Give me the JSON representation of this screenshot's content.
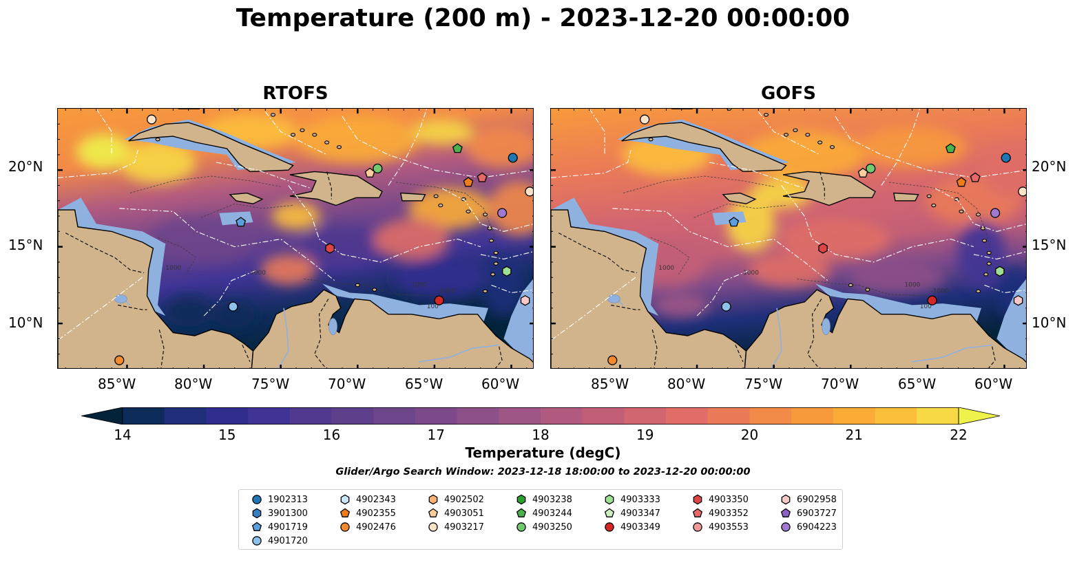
{
  "title": "Temperature (200 m) - 2023-12-20 00:00:00",
  "panels": [
    {
      "id": "rtofs",
      "title": "RTOFS"
    },
    {
      "id": "gofs",
      "title": "GOFS"
    }
  ],
  "axes": {
    "lon_ticks": [
      "85°W",
      "80°W",
      "75°W",
      "70°W",
      "65°W",
      "60°W"
    ],
    "lat_ticks": [
      "20°N",
      "15°N",
      "10°N"
    ],
    "lon_range": [
      -89.5,
      -58.5
    ],
    "lat_range": [
      7,
      24
    ]
  },
  "colorbar": {
    "label": "Temperature (degC)",
    "ticks": [
      "14",
      "15",
      "16",
      "17",
      "18",
      "19",
      "20",
      "21",
      "22"
    ],
    "range": [
      14,
      22
    ],
    "colors": [
      "#03233a",
      "#0e2c5a",
      "#1f2f7a",
      "#302d8f",
      "#3f3495",
      "#50398f",
      "#5e3f8c",
      "#6d458b",
      "#7c4a8a",
      "#8d5088",
      "#9e5686",
      "#b05a80",
      "#c25f77",
      "#d26670",
      "#e06e66",
      "#ea7a58",
      "#f28a48",
      "#f79a3c",
      "#fbac37",
      "#fcbf3c",
      "#f7d845",
      "#eef24b"
    ]
  },
  "contour_labels": [
    "1000",
    "1000",
    "1000",
    "100",
    "-1000"
  ],
  "search_window": "Glider/Argo Search Window: 2023-12-18 18:00:00 to 2023-12-20 00:00:00",
  "legend": [
    {
      "id": "1902313",
      "marker": "circle",
      "color": "#1f77b4"
    },
    {
      "id": "3901300",
      "marker": "hexagon",
      "color": "#3a7ec2"
    },
    {
      "id": "4901719",
      "marker": "pentagon",
      "color": "#5aa0dc"
    },
    {
      "id": "4901720",
      "marker": "circle",
      "color": "#8ec2ec"
    },
    {
      "id": "4902343",
      "marker": "hexagon",
      "color": "#cbe5fb"
    },
    {
      "id": "4902355",
      "marker": "pentagon",
      "color": "#f07c1a"
    },
    {
      "id": "4902476",
      "marker": "circle",
      "color": "#f28a2e"
    },
    {
      "id": "4902502",
      "marker": "hexagon",
      "color": "#f9b273"
    },
    {
      "id": "4903051",
      "marker": "pentagon",
      "color": "#fbcd9a"
    },
    {
      "id": "4903217",
      "marker": "circle",
      "color": "#fde3c8"
    },
    {
      "id": "4903238",
      "marker": "hexagon",
      "color": "#2ca02c"
    },
    {
      "id": "4903244",
      "marker": "pentagon",
      "color": "#4cb24c"
    },
    {
      "id": "4903250",
      "marker": "circle",
      "color": "#73c96e"
    },
    {
      "id": "4903333",
      "marker": "hexagon",
      "color": "#9fdf93"
    },
    {
      "id": "4903347",
      "marker": "pentagon",
      "color": "#cdeec2"
    },
    {
      "id": "4903349",
      "marker": "circle",
      "color": "#d62728"
    },
    {
      "id": "4903350",
      "marker": "hexagon",
      "color": "#dc4545"
    },
    {
      "id": "4903352",
      "marker": "pentagon",
      "color": "#e86868"
    },
    {
      "id": "4903553",
      "marker": "circle",
      "color": "#f09a9a"
    },
    {
      "id": "6902958",
      "marker": "hexagon",
      "color": "#f7c9c9"
    },
    {
      "id": "6903727",
      "marker": "pentagon",
      "color": "#8c62c2"
    },
    {
      "id": "6904223",
      "marker": "circle",
      "color": "#a07ad0"
    }
  ],
  "floats": [
    {
      "id": "4903217",
      "lon": -83.4,
      "lat": 23.3
    },
    {
      "id": "1902313",
      "lon": -59.9,
      "lat": 20.8
    },
    {
      "id": "4903244",
      "lon": -63.5,
      "lat": 21.4
    },
    {
      "id": "4903250",
      "lon": -68.7,
      "lat": 20.1
    },
    {
      "id": "4903051",
      "lon": -69.2,
      "lat": 19.8
    },
    {
      "id": "4903352",
      "lon": -61.9,
      "lat": 19.5
    },
    {
      "id": "4902355",
      "lon": -62.8,
      "lat": 19.2
    },
    {
      "id": "4903217",
      "lon": -58.8,
      "lat": 18.6
    },
    {
      "id": "6904223",
      "lon": -60.6,
      "lat": 17.2
    },
    {
      "id": "4901719",
      "lon": -77.6,
      "lat": 16.6
    },
    {
      "id": "4903350",
      "lon": -71.8,
      "lat": 14.9
    },
    {
      "id": "4903333",
      "lon": -60.3,
      "lat": 13.4
    },
    {
      "id": "4903349",
      "lon": -64.7,
      "lat": 11.5
    },
    {
      "id": "6902958",
      "lon": -59.1,
      "lat": 11.5
    },
    {
      "id": "4901720",
      "lon": -78.1,
      "lat": 11.1
    },
    {
      "id": "4902476",
      "lon": -85.5,
      "lat": 7.6
    }
  ]
}
